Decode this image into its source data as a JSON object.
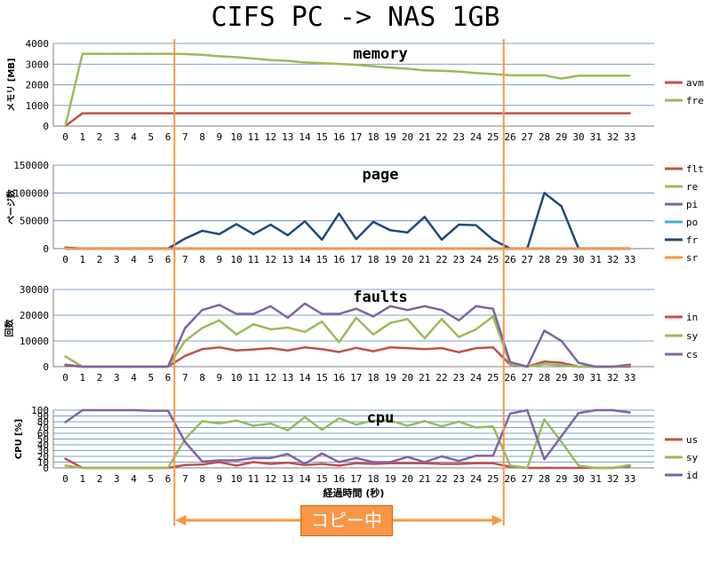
{
  "title": "CIFS PC -> NAS 1GB",
  "copy_label": "コピー中",
  "copy_range": [
    7,
    25
  ],
  "colors": {
    "red": "#c0504d",
    "green": "#9bbb59",
    "purple": "#8064a2",
    "cyan": "#4bacc6",
    "navy": "#1f497d",
    "orange": "#f79646",
    "grid": "#4f81bd",
    "axis": "#7f7f7f"
  },
  "chart_data": [
    {
      "type": "line",
      "title": "memory",
      "ylabel": "メモリ [MB]",
      "ylim": [
        0,
        4000
      ],
      "yticks": [
        "0",
        "1000",
        "2000",
        "3000",
        "4000"
      ],
      "x": [
        0,
        1,
        2,
        3,
        4,
        5,
        6,
        7,
        8,
        9,
        10,
        11,
        12,
        13,
        14,
        15,
        16,
        17,
        18,
        19,
        20,
        21,
        22,
        23,
        24,
        25,
        26,
        27,
        28,
        29,
        30,
        31,
        32,
        33
      ],
      "series": [
        {
          "name": "avm",
          "color": "red",
          "values": [
            0,
            620,
            620,
            620,
            620,
            620,
            620,
            620,
            620,
            620,
            620,
            620,
            620,
            620,
            620,
            620,
            620,
            620,
            620,
            620,
            620,
            620,
            620,
            620,
            620,
            620,
            620,
            620,
            620,
            620,
            620,
            620,
            620,
            620
          ]
        },
        {
          "name": "fre",
          "color": "green",
          "values": [
            0,
            3500,
            3500,
            3500,
            3500,
            3500,
            3500,
            3490,
            3450,
            3380,
            3340,
            3270,
            3200,
            3160,
            3080,
            3050,
            3010,
            2970,
            2900,
            2830,
            2780,
            2700,
            2680,
            2640,
            2570,
            2520,
            2460,
            2460,
            2460,
            2300,
            2440,
            2440,
            2440,
            2440
          ]
        }
      ]
    },
    {
      "type": "line",
      "title": "page",
      "ylabel": "ページ数",
      "ylim": [
        0,
        150000
      ],
      "yticks": [
        "0",
        "50000",
        "100000",
        "150000"
      ],
      "x": [
        0,
        1,
        2,
        3,
        4,
        5,
        6,
        7,
        8,
        9,
        10,
        11,
        12,
        13,
        14,
        15,
        16,
        17,
        18,
        19,
        20,
        21,
        22,
        23,
        24,
        25,
        26,
        27,
        28,
        29,
        30,
        31,
        32,
        33
      ],
      "series": [
        {
          "name": "flt",
          "color": "red",
          "values": [
            2000,
            0,
            0,
            0,
            0,
            0,
            0,
            0,
            0,
            0,
            0,
            0,
            0,
            0,
            0,
            0,
            0,
            0,
            0,
            0,
            0,
            0,
            0,
            0,
            0,
            0,
            0,
            0,
            0,
            0,
            0,
            0,
            0,
            0
          ]
        },
        {
          "name": "re",
          "color": "green",
          "values": [
            0,
            0,
            0,
            0,
            0,
            0,
            0,
            0,
            0,
            0,
            0,
            0,
            0,
            0,
            0,
            0,
            0,
            0,
            0,
            0,
            0,
            0,
            0,
            0,
            0,
            0,
            0,
            0,
            0,
            0,
            0,
            0,
            0,
            0
          ]
        },
        {
          "name": "pi",
          "color": "purple",
          "values": [
            0,
            0,
            0,
            0,
            0,
            0,
            0,
            0,
            0,
            0,
            0,
            0,
            0,
            0,
            0,
            0,
            0,
            0,
            0,
            0,
            0,
            0,
            0,
            0,
            0,
            0,
            0,
            0,
            0,
            0,
            0,
            0,
            0,
            0
          ]
        },
        {
          "name": "po",
          "color": "cyan",
          "values": [
            0,
            0,
            0,
            0,
            0,
            0,
            0,
            0,
            0,
            0,
            0,
            0,
            0,
            0,
            0,
            0,
            0,
            0,
            0,
            0,
            0,
            0,
            0,
            0,
            0,
            0,
            0,
            0,
            0,
            0,
            0,
            0,
            0,
            0
          ]
        },
        {
          "name": "fr",
          "color": "navy",
          "values": [
            0,
            0,
            0,
            0,
            0,
            0,
            0,
            18000,
            32000,
            26000,
            44000,
            26000,
            43000,
            24000,
            49000,
            16000,
            63000,
            17000,
            48000,
            33000,
            29000,
            57000,
            16000,
            43000,
            42000,
            16000,
            0,
            0,
            100000,
            76000,
            0,
            0,
            0,
            0
          ]
        },
        {
          "name": "sr",
          "color": "orange",
          "values": [
            0,
            0,
            0,
            0,
            0,
            0,
            0,
            0,
            0,
            0,
            0,
            0,
            0,
            0,
            0,
            0,
            0,
            0,
            0,
            0,
            0,
            0,
            0,
            0,
            0,
            0,
            0,
            0,
            0,
            0,
            0,
            0,
            0,
            0
          ]
        }
      ]
    },
    {
      "type": "line",
      "title": "faults",
      "ylabel": "回数",
      "ylim": [
        0,
        30000
      ],
      "yticks": [
        "0",
        "10000",
        "20000",
        "30000"
      ],
      "x": [
        0,
        1,
        2,
        3,
        4,
        5,
        6,
        7,
        8,
        9,
        10,
        11,
        12,
        13,
        14,
        15,
        16,
        17,
        18,
        19,
        20,
        21,
        22,
        23,
        24,
        25,
        26,
        27,
        28,
        29,
        30,
        31,
        32,
        33
      ],
      "series": [
        {
          "name": "in",
          "color": "red",
          "values": [
            500,
            0,
            0,
            0,
            0,
            0,
            0,
            4200,
            6800,
            7500,
            6300,
            6700,
            7200,
            6300,
            7500,
            6800,
            5700,
            7300,
            6000,
            7500,
            7200,
            6800,
            7200,
            5600,
            7200,
            7500,
            800,
            0,
            2000,
            1500,
            0,
            0,
            0,
            0
          ]
        },
        {
          "name": "sy",
          "color": "green",
          "values": [
            4000,
            0,
            0,
            0,
            0,
            0,
            0,
            10000,
            15000,
            18000,
            12500,
            16500,
            14500,
            15200,
            13500,
            17500,
            9500,
            19000,
            12500,
            17000,
            18500,
            11000,
            18500,
            11500,
            14500,
            19500,
            1000,
            0,
            1000,
            500,
            0,
            0,
            0,
            500
          ]
        },
        {
          "name": "cs",
          "color": "purple",
          "values": [
            800,
            0,
            0,
            0,
            0,
            0,
            0,
            15000,
            22000,
            24000,
            20500,
            20500,
            23500,
            19000,
            24500,
            20500,
            20500,
            22500,
            19500,
            23500,
            22000,
            23500,
            22000,
            18000,
            23500,
            22500,
            1800,
            0,
            14000,
            10000,
            1500,
            0,
            0,
            800
          ]
        }
      ]
    },
    {
      "type": "line",
      "title": "cpu",
      "ylabel": "CPU [%]",
      "ylim": [
        0,
        100
      ],
      "yticks": [
        "0",
        "10",
        "20",
        "30",
        "40",
        "50",
        "60",
        "70",
        "80",
        "90",
        "100"
      ],
      "xlabel": "経過時間 (秒)",
      "x": [
        0,
        1,
        2,
        3,
        4,
        5,
        6,
        7,
        8,
        9,
        10,
        11,
        12,
        13,
        14,
        15,
        16,
        17,
        18,
        19,
        20,
        21,
        22,
        23,
        24,
        25,
        26,
        27,
        28,
        29,
        30,
        31,
        32,
        33
      ],
      "series": [
        {
          "name": "us",
          "color": "red",
          "values": [
            16,
            0,
            0,
            0,
            0,
            0,
            0,
            5,
            6,
            10,
            4,
            10,
            7,
            9,
            5,
            7,
            4,
            8,
            7,
            8,
            8,
            8,
            7,
            7,
            8,
            8,
            2,
            0,
            0,
            0,
            0,
            0,
            0,
            3
          ]
        },
        {
          "name": "sy",
          "color": "green",
          "values": [
            4,
            0,
            0,
            0,
            0,
            0,
            0,
            50,
            81,
            77,
            82,
            73,
            77,
            65,
            88,
            66,
            86,
            75,
            82,
            82,
            73,
            81,
            72,
            80,
            70,
            72,
            4,
            0,
            84,
            45,
            4,
            0,
            0,
            5
          ]
        },
        {
          "name": "id",
          "color": "purple",
          "values": [
            79,
            100,
            100,
            100,
            100,
            99,
            99,
            45,
            11,
            13,
            13,
            17,
            17,
            24,
            7,
            25,
            10,
            17,
            10,
            10,
            19,
            10,
            20,
            12,
            21,
            21,
            94,
            100,
            15,
            55,
            95,
            100,
            100,
            96
          ]
        }
      ]
    }
  ]
}
